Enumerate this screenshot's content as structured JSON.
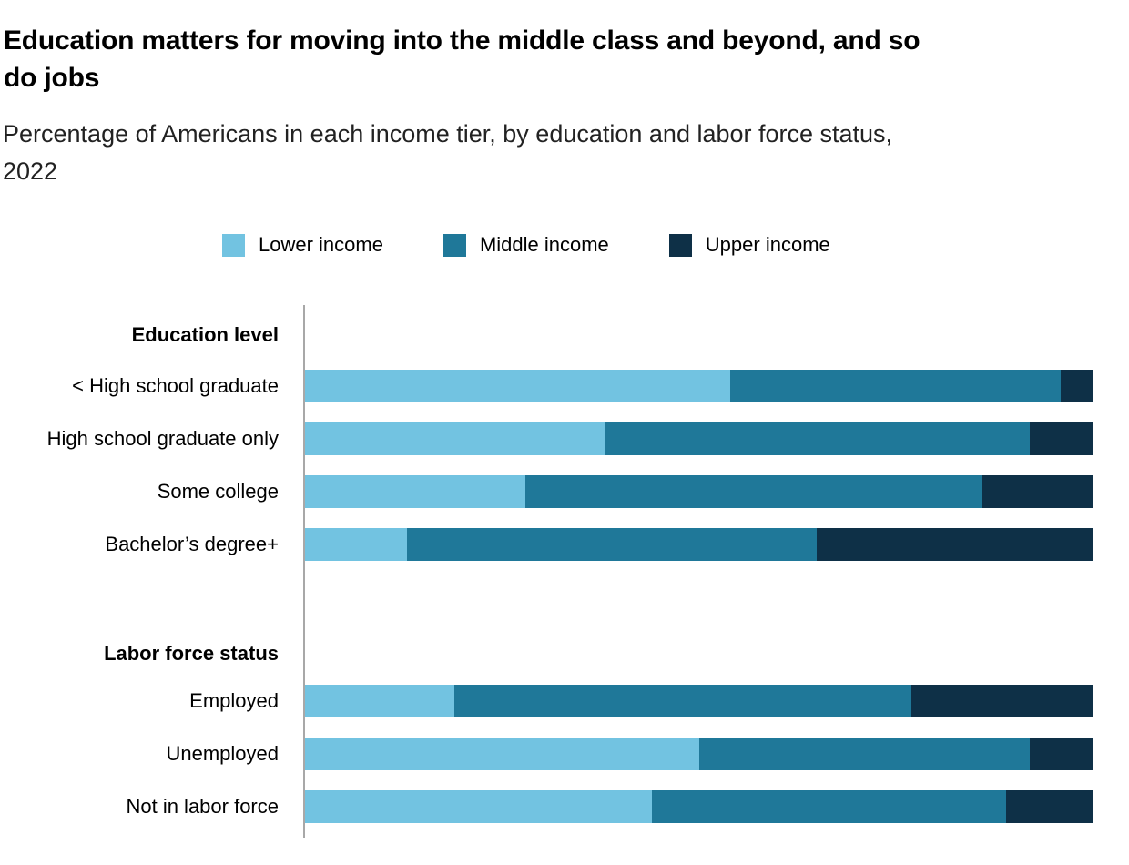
{
  "header": {
    "title": "Education matters for moving into the middle class and beyond, and so\ndo jobs",
    "subtitle": "Percentage of Americans in each income tier, by education and labor force status,\n2022"
  },
  "chart_data": {
    "type": "bar",
    "orientation": "horizontal",
    "stacked": true,
    "unit": "percent of adults in each income tier",
    "xlim": [
      0,
      100
    ],
    "grid": false,
    "legend_position": "top",
    "axis_line_color": "#a8a8a8",
    "series": [
      {
        "name": "Lower income",
        "color": "#72c3e1"
      },
      {
        "name": "Middle income",
        "color": "#1f7899"
      },
      {
        "name": "Upper income",
        "color": "#0e3047"
      }
    ],
    "groups": [
      {
        "header": "Education level",
        "rows": [
          {
            "label": "< High school graduate",
            "values": [
              54,
              42,
              4
            ]
          },
          {
            "label": "High school graduate only",
            "values": [
              38,
              54,
              8
            ]
          },
          {
            "label": "Some college",
            "values": [
              28,
              58,
              14
            ]
          },
          {
            "label": "Bachelor’s degree+",
            "values": [
              13,
              52,
              35
            ]
          }
        ]
      },
      {
        "header": "Labor force status",
        "rows": [
          {
            "label": "Employed",
            "values": [
              19,
              58,
              23
            ]
          },
          {
            "label": "Unemployed",
            "values": [
              50,
              42,
              8
            ]
          },
          {
            "label": "Not in labor force",
            "values": [
              44,
              45,
              11
            ]
          }
        ]
      }
    ]
  }
}
